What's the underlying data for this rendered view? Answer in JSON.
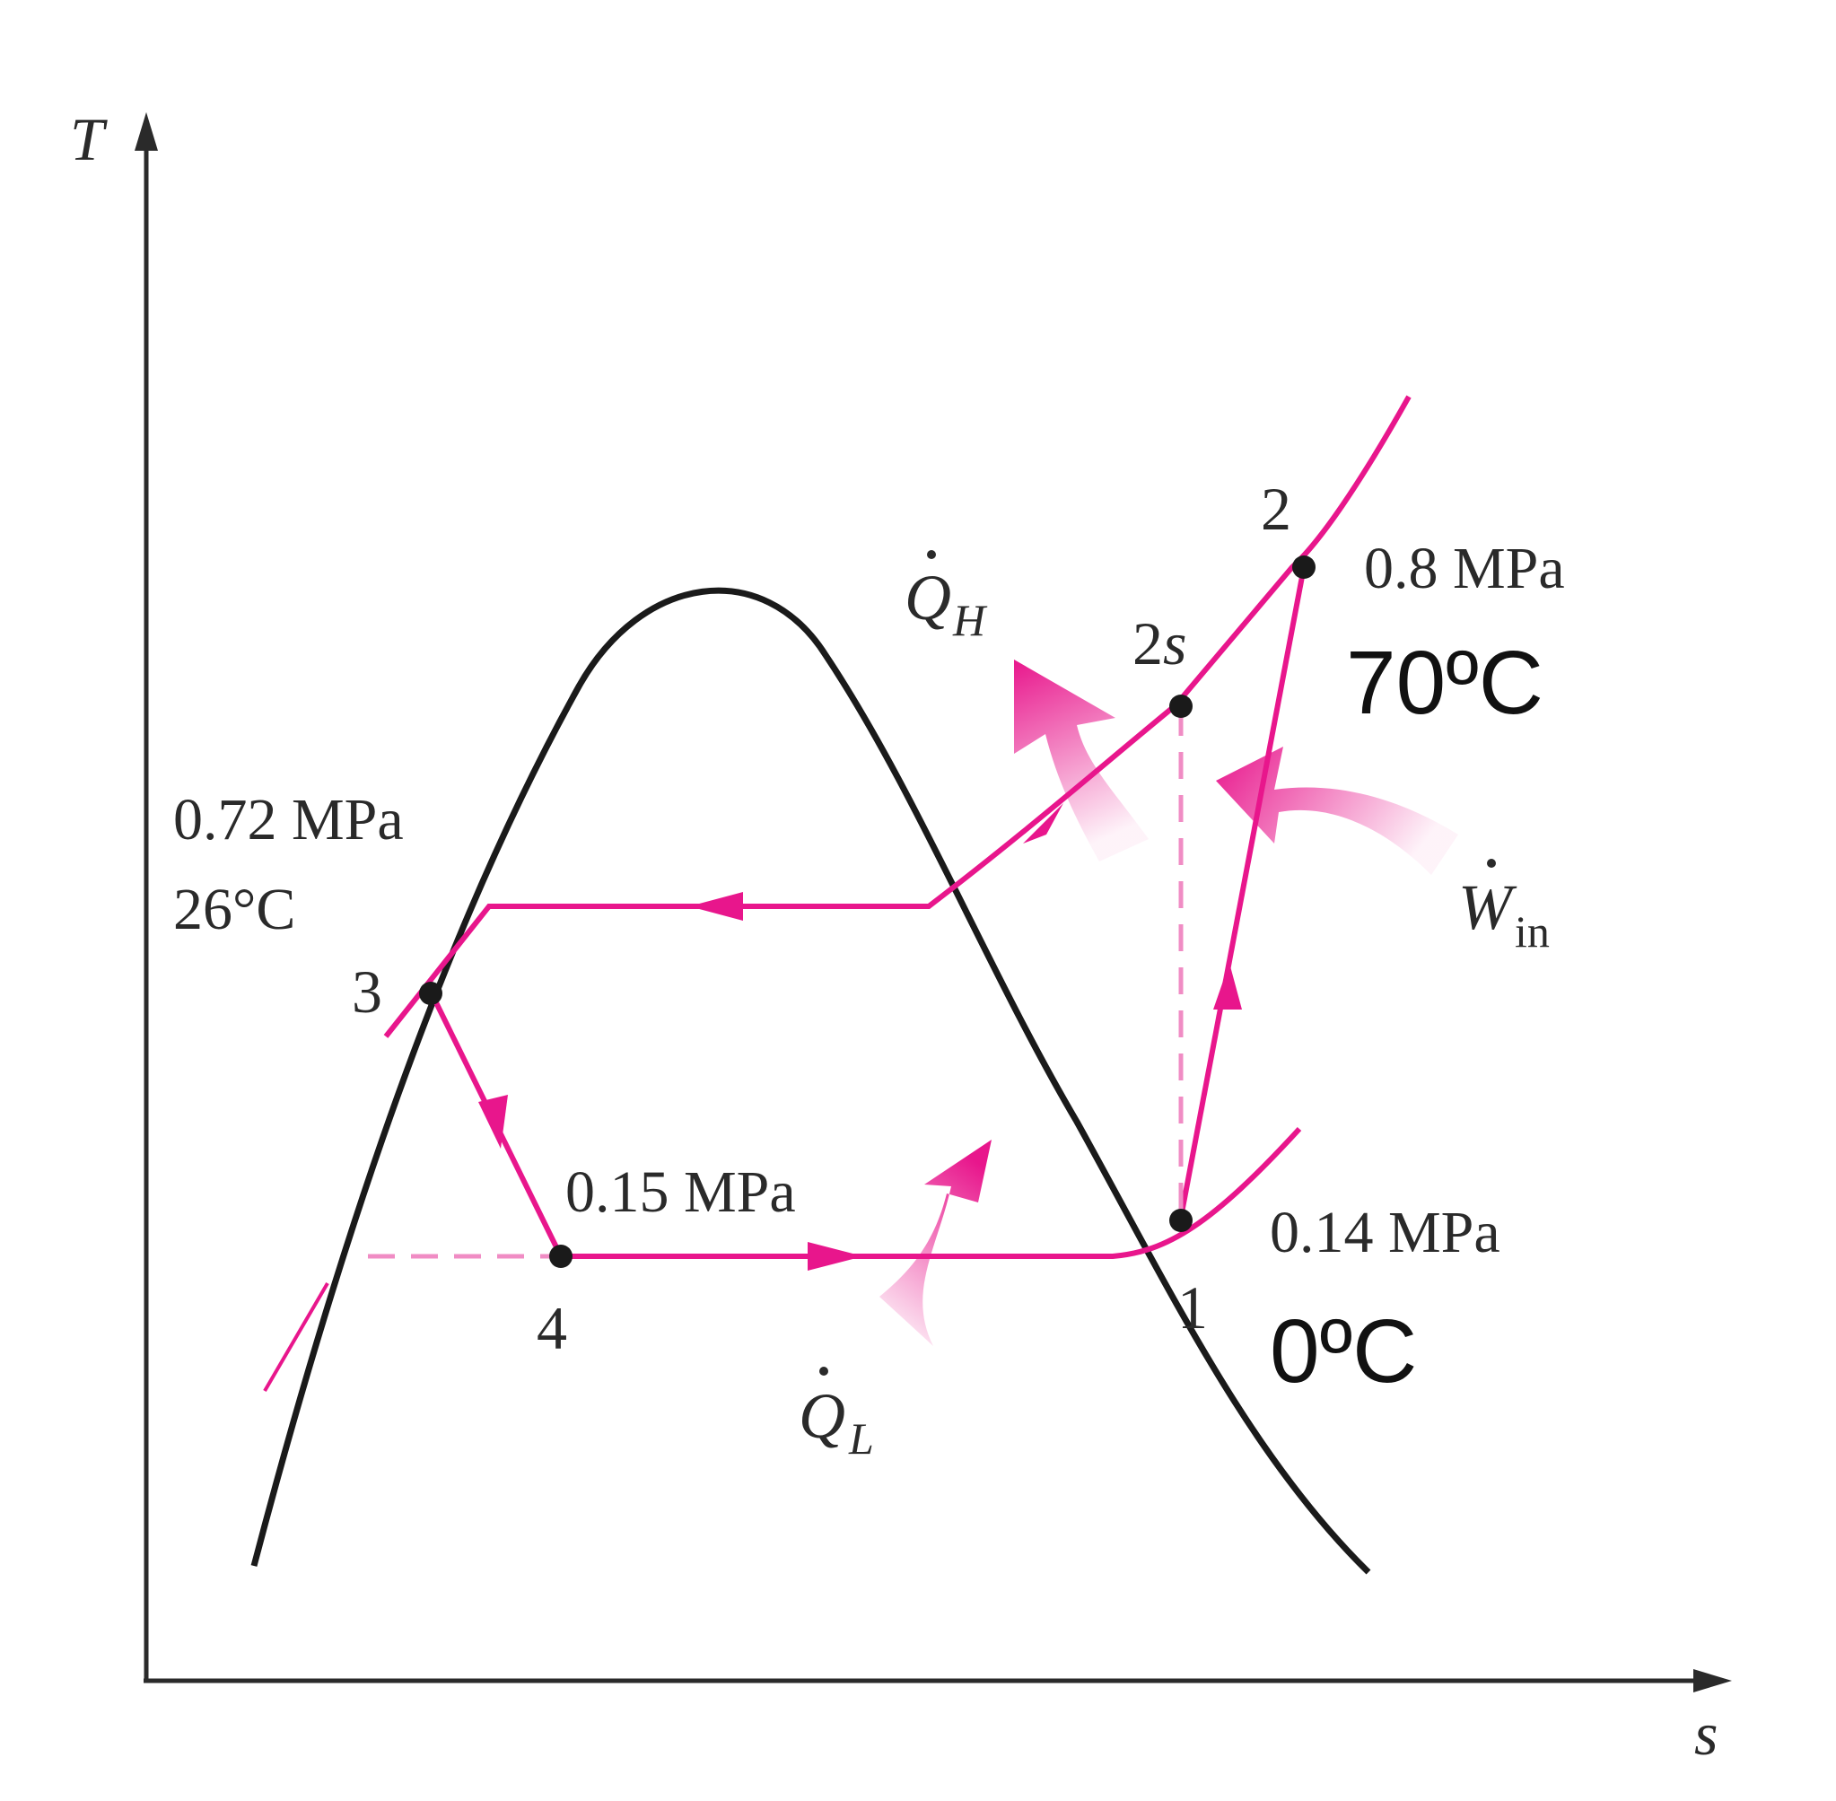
{
  "diagram": {
    "type": "T-s diagram, vapor-compression refrigeration cycle",
    "axes": {
      "y_label": "T",
      "x_label": "s"
    },
    "colors": {
      "cycle": "#e8168c",
      "dome": "#1a1a1a",
      "axis": "#2a2a2a",
      "text": "#2a2a2a"
    },
    "states": {
      "s1": {
        "label": "1",
        "pressure": "0.14 MPa",
        "temperature": "0ºC"
      },
      "s2": {
        "label": "2",
        "pressure": "0.8 MPa",
        "temperature": "70ºC"
      },
      "s2s": {
        "label_num": "2",
        "label_ital": "s"
      },
      "s3": {
        "label": "3",
        "pressure": "0.72 MPa",
        "temperature": "26°C"
      },
      "s4": {
        "label": "4",
        "pressure": "0.15 MPa"
      }
    },
    "heat_work": {
      "qh": {
        "symbol": "Q",
        "sub": "H"
      },
      "ql": {
        "symbol": "Q",
        "sub": "L"
      },
      "win": {
        "symbol": "W",
        "sub": "in"
      }
    }
  }
}
